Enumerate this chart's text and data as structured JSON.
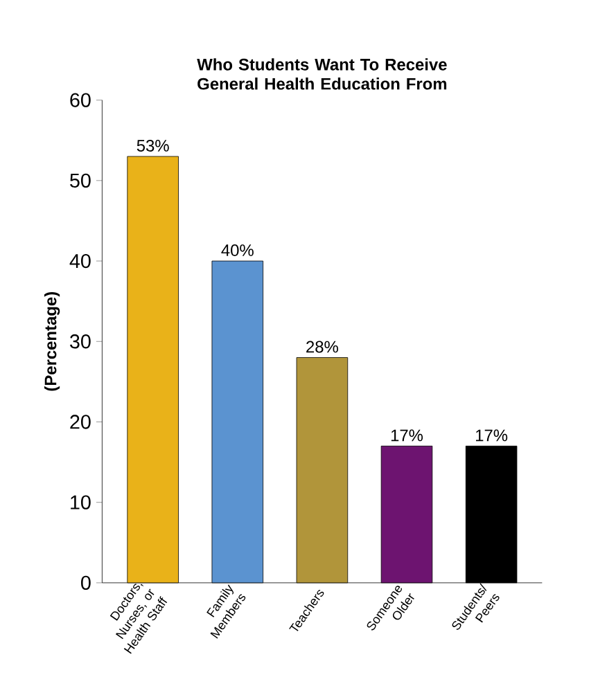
{
  "chart_data": {
    "type": "bar",
    "title": "Who Students Want To Receive General Health Education From",
    "ylabel": "(Percentage)",
    "categories": [
      "Doctors, Nurses, or Health Staff",
      "Family Members",
      "Teachers",
      "Someone Older",
      "Students/ Peers"
    ],
    "values": [
      53,
      40,
      28,
      17,
      17
    ],
    "colors": [
      "#e9b219",
      "#5b93d0",
      "#b1953a",
      "#6d1470",
      "#000000"
    ],
    "value_labels": [
      "53%",
      "40%",
      "28%",
      "17%",
      "17%"
    ],
    "ylim": [
      0,
      60
    ],
    "yticks": [
      0,
      10,
      20,
      30,
      40,
      50,
      60
    ],
    "grid": false
  }
}
